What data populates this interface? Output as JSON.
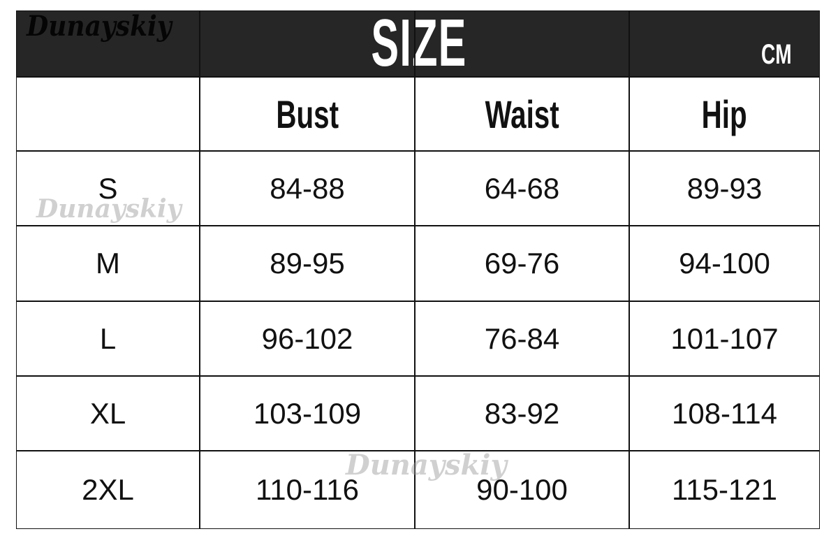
{
  "header": {
    "brand": "Dunayskiy",
    "title": "SIZE",
    "unit": "CM"
  },
  "columns": [
    "",
    "Bust",
    "Waist",
    "Hip"
  ],
  "rows": [
    {
      "size": "S",
      "bust": "84-88",
      "waist": "64-68",
      "hip": "89-93"
    },
    {
      "size": "M",
      "bust": "89-95",
      "waist": "69-76",
      "hip": "94-100"
    },
    {
      "size": "L",
      "bust": "96-102",
      "waist": "76-84",
      "hip": "101-107"
    },
    {
      "size": "XL",
      "bust": "103-109",
      "waist": "83-92",
      "hip": "108-114"
    },
    {
      "size": "2XL",
      "bust": "110-116",
      "waist": "90-100",
      "hip": "115-121"
    }
  ],
  "watermark": "Dunayskiy"
}
